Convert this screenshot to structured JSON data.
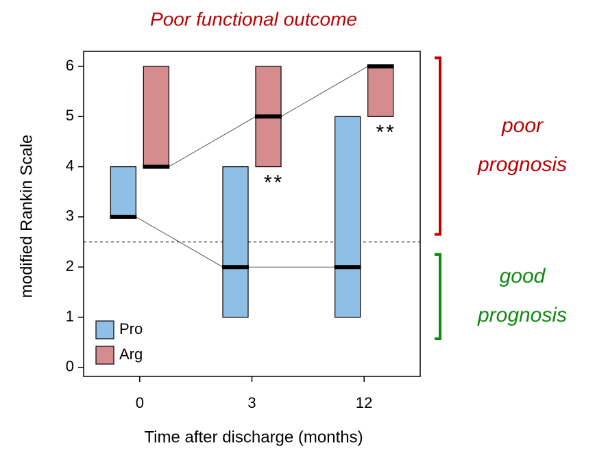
{
  "chart_data": {
    "type": "range-bar",
    "title": "Poor functional outcome",
    "x_label": "Time after discharge (months)",
    "y_label": "modified Rankin Scale",
    "categories": [
      "0",
      "3",
      "12"
    ],
    "series": [
      {
        "name": "Pro",
        "color": "#90bfe6",
        "low": [
          3,
          1,
          1
        ],
        "high": [
          4,
          4,
          5
        ],
        "median": [
          3,
          2,
          2
        ]
      },
      {
        "name": "Arg",
        "color": "#d48c8f",
        "low": [
          4,
          4,
          5
        ],
        "high": [
          6,
          6,
          6
        ],
        "median": [
          4,
          5,
          6
        ]
      }
    ],
    "annotations": [
      {
        "text": "**",
        "at": 1
      },
      {
        "text": "**",
        "at": 2
      }
    ],
    "threshold": 2.5,
    "regions": [
      {
        "lines": [
          "poor",
          "prognosis"
        ],
        "range": [
          2.65,
          6.17
        ],
        "color": "#c00000"
      },
      {
        "lines": [
          "good",
          "prognosis"
        ],
        "range": [
          0.57,
          2.25
        ],
        "color": "#118a11"
      }
    ],
    "ylim": [
      -0.18,
      6.3
    ],
    "yticks": [
      0,
      1,
      2,
      3,
      4,
      5,
      6
    ],
    "legend": "bottom-left",
    "title_color": "#c00000"
  }
}
